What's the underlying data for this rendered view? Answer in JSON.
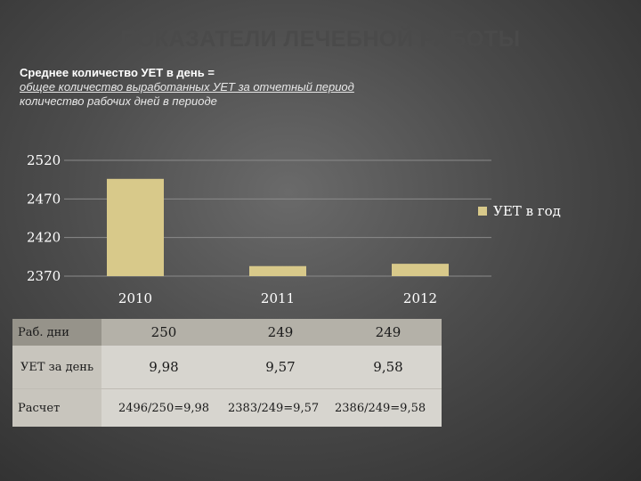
{
  "slide": {
    "title": "ПОКАЗАТЕЛИ ЛЕЧЕБНОЙ РАБОТЫ",
    "formula_line1": "Среднее количество УЕТ в день =",
    "formula_line2": "общее  количество выработанных  УЕТ за отчетный период",
    "formula_line3": "количество рабочих дней в периоде"
  },
  "chart_data": {
    "type": "bar",
    "categories": [
      "2010",
      "2011",
      "2012"
    ],
    "series": [
      {
        "name": "УЕТ в год",
        "values": [
          2496,
          2383,
          2386
        ]
      }
    ],
    "ylim": [
      2370,
      2520
    ],
    "yticks": [
      "2520",
      "2470",
      "2420",
      "2370"
    ],
    "grid": true,
    "legend": "right",
    "color": "#d8c98a"
  },
  "table": {
    "rows": [
      {
        "label": "Раб. дни",
        "values": [
          "250",
          "249",
          "249"
        ]
      },
      {
        "label": "УЕТ за день",
        "values": [
          "9,98",
          "9,57",
          "9,58"
        ]
      },
      {
        "label": "Расчет",
        "values": [
          "2496/250=9,98",
          "2383/249=9,57",
          "2386/249=9,58"
        ]
      }
    ]
  }
}
